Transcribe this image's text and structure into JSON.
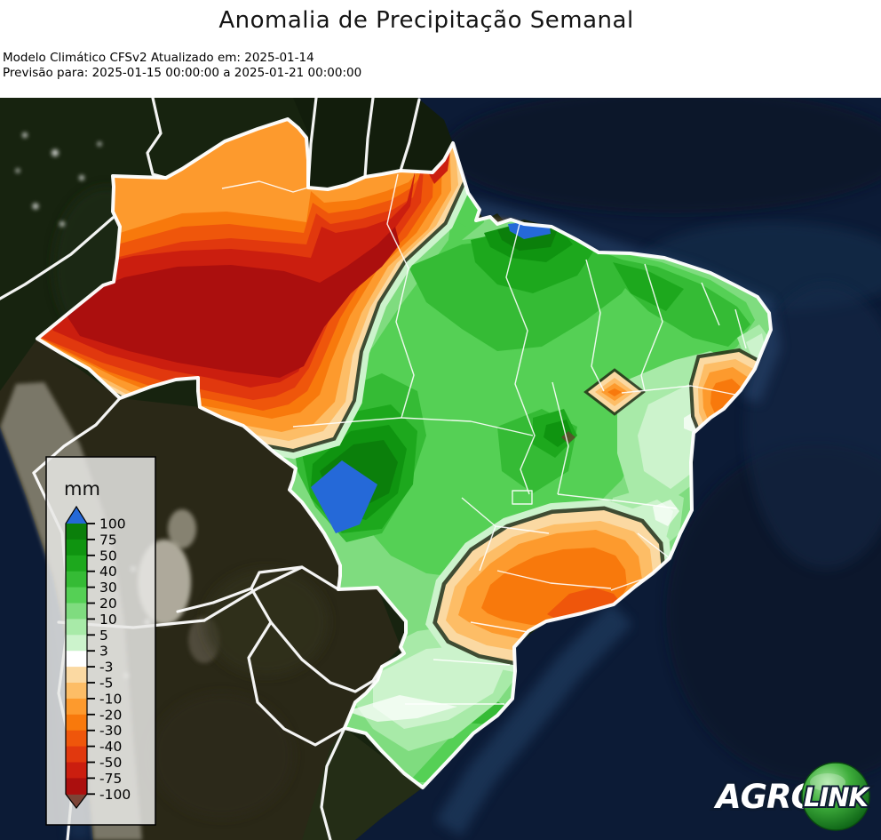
{
  "header": {
    "title": "Anomalia de Precipitação Semanal",
    "model_line": "Modelo Climático CFSv2 Atualizado em: 2025-01-14",
    "forecast_line": "Previsão para: 2025-01-15 00:00:00 a 2025-01-21 00:00:00"
  },
  "legend": {
    "unit_label": "mm",
    "ticks": [
      "100",
      "75",
      "50",
      "40",
      "30",
      "20",
      "10",
      "5",
      "3",
      "-3",
      "-5",
      "-10",
      "-20",
      "-30",
      "-40",
      "-50",
      "-75",
      "-100"
    ],
    "bands": [
      "#0b7f0b",
      "#0f9410",
      "#1da81d",
      "#35bb35",
      "#55d055",
      "#7fdc7f",
      "#a8eaa8",
      "#ccf3cc",
      "#ffffff",
      "#fbd9a2",
      "#fdbd66",
      "#fd9a2d",
      "#f8790c",
      "#ef560b",
      "#e1380e",
      "#cb1e0f",
      "#ab0f0e"
    ],
    "over_color": "#2569d8",
    "under_color": "#7c4437"
  },
  "logo": {
    "agro": "AGRO",
    "link": "LINK",
    "sphere_color": "#28a428"
  },
  "map": {
    "area_shown": "Brasil e América do Sul",
    "anomaly_regions": [
      {
        "area": "Amazônia ocidental (AM/AC/RO)",
        "anomaly_mm": "-50 a -100",
        "color": "#ab0f0e"
      },
      {
        "area": "Roraima e norte do Pará",
        "anomaly_mm": "-10 a -30",
        "color": "#fd9a2d"
      },
      {
        "area": "Centro-Oeste, Nordeste e interior",
        "anomaly_mm": "+10 a +75",
        "color": "#55d055"
      },
      {
        "area": "Litoral norte do Pará",
        "anomaly_mm": "> +100",
        "color": "#2569d8"
      },
      {
        "area": "Oeste de Mato Grosso",
        "anomaly_mm": "> +100",
        "color": "#2569d8"
      },
      {
        "area": "São Paulo / Paraná",
        "anomaly_mm": "-10 a -40",
        "color": "#f8790c"
      },
      {
        "area": "Litoral PE/AL/SE",
        "anomaly_mm": "-10 a -30",
        "color": "#fd9a2d"
      },
      {
        "area": "Sul (SC/RS)",
        "anomaly_mm": "0 a +20",
        "color": "#b2ecb2"
      }
    ],
    "colors": {
      "ocean": "#0c1b36",
      "land_outside": "#17230f",
      "country_border": "#ffffff",
      "legend_background": "rgba(232,232,229,0.85)"
    }
  }
}
